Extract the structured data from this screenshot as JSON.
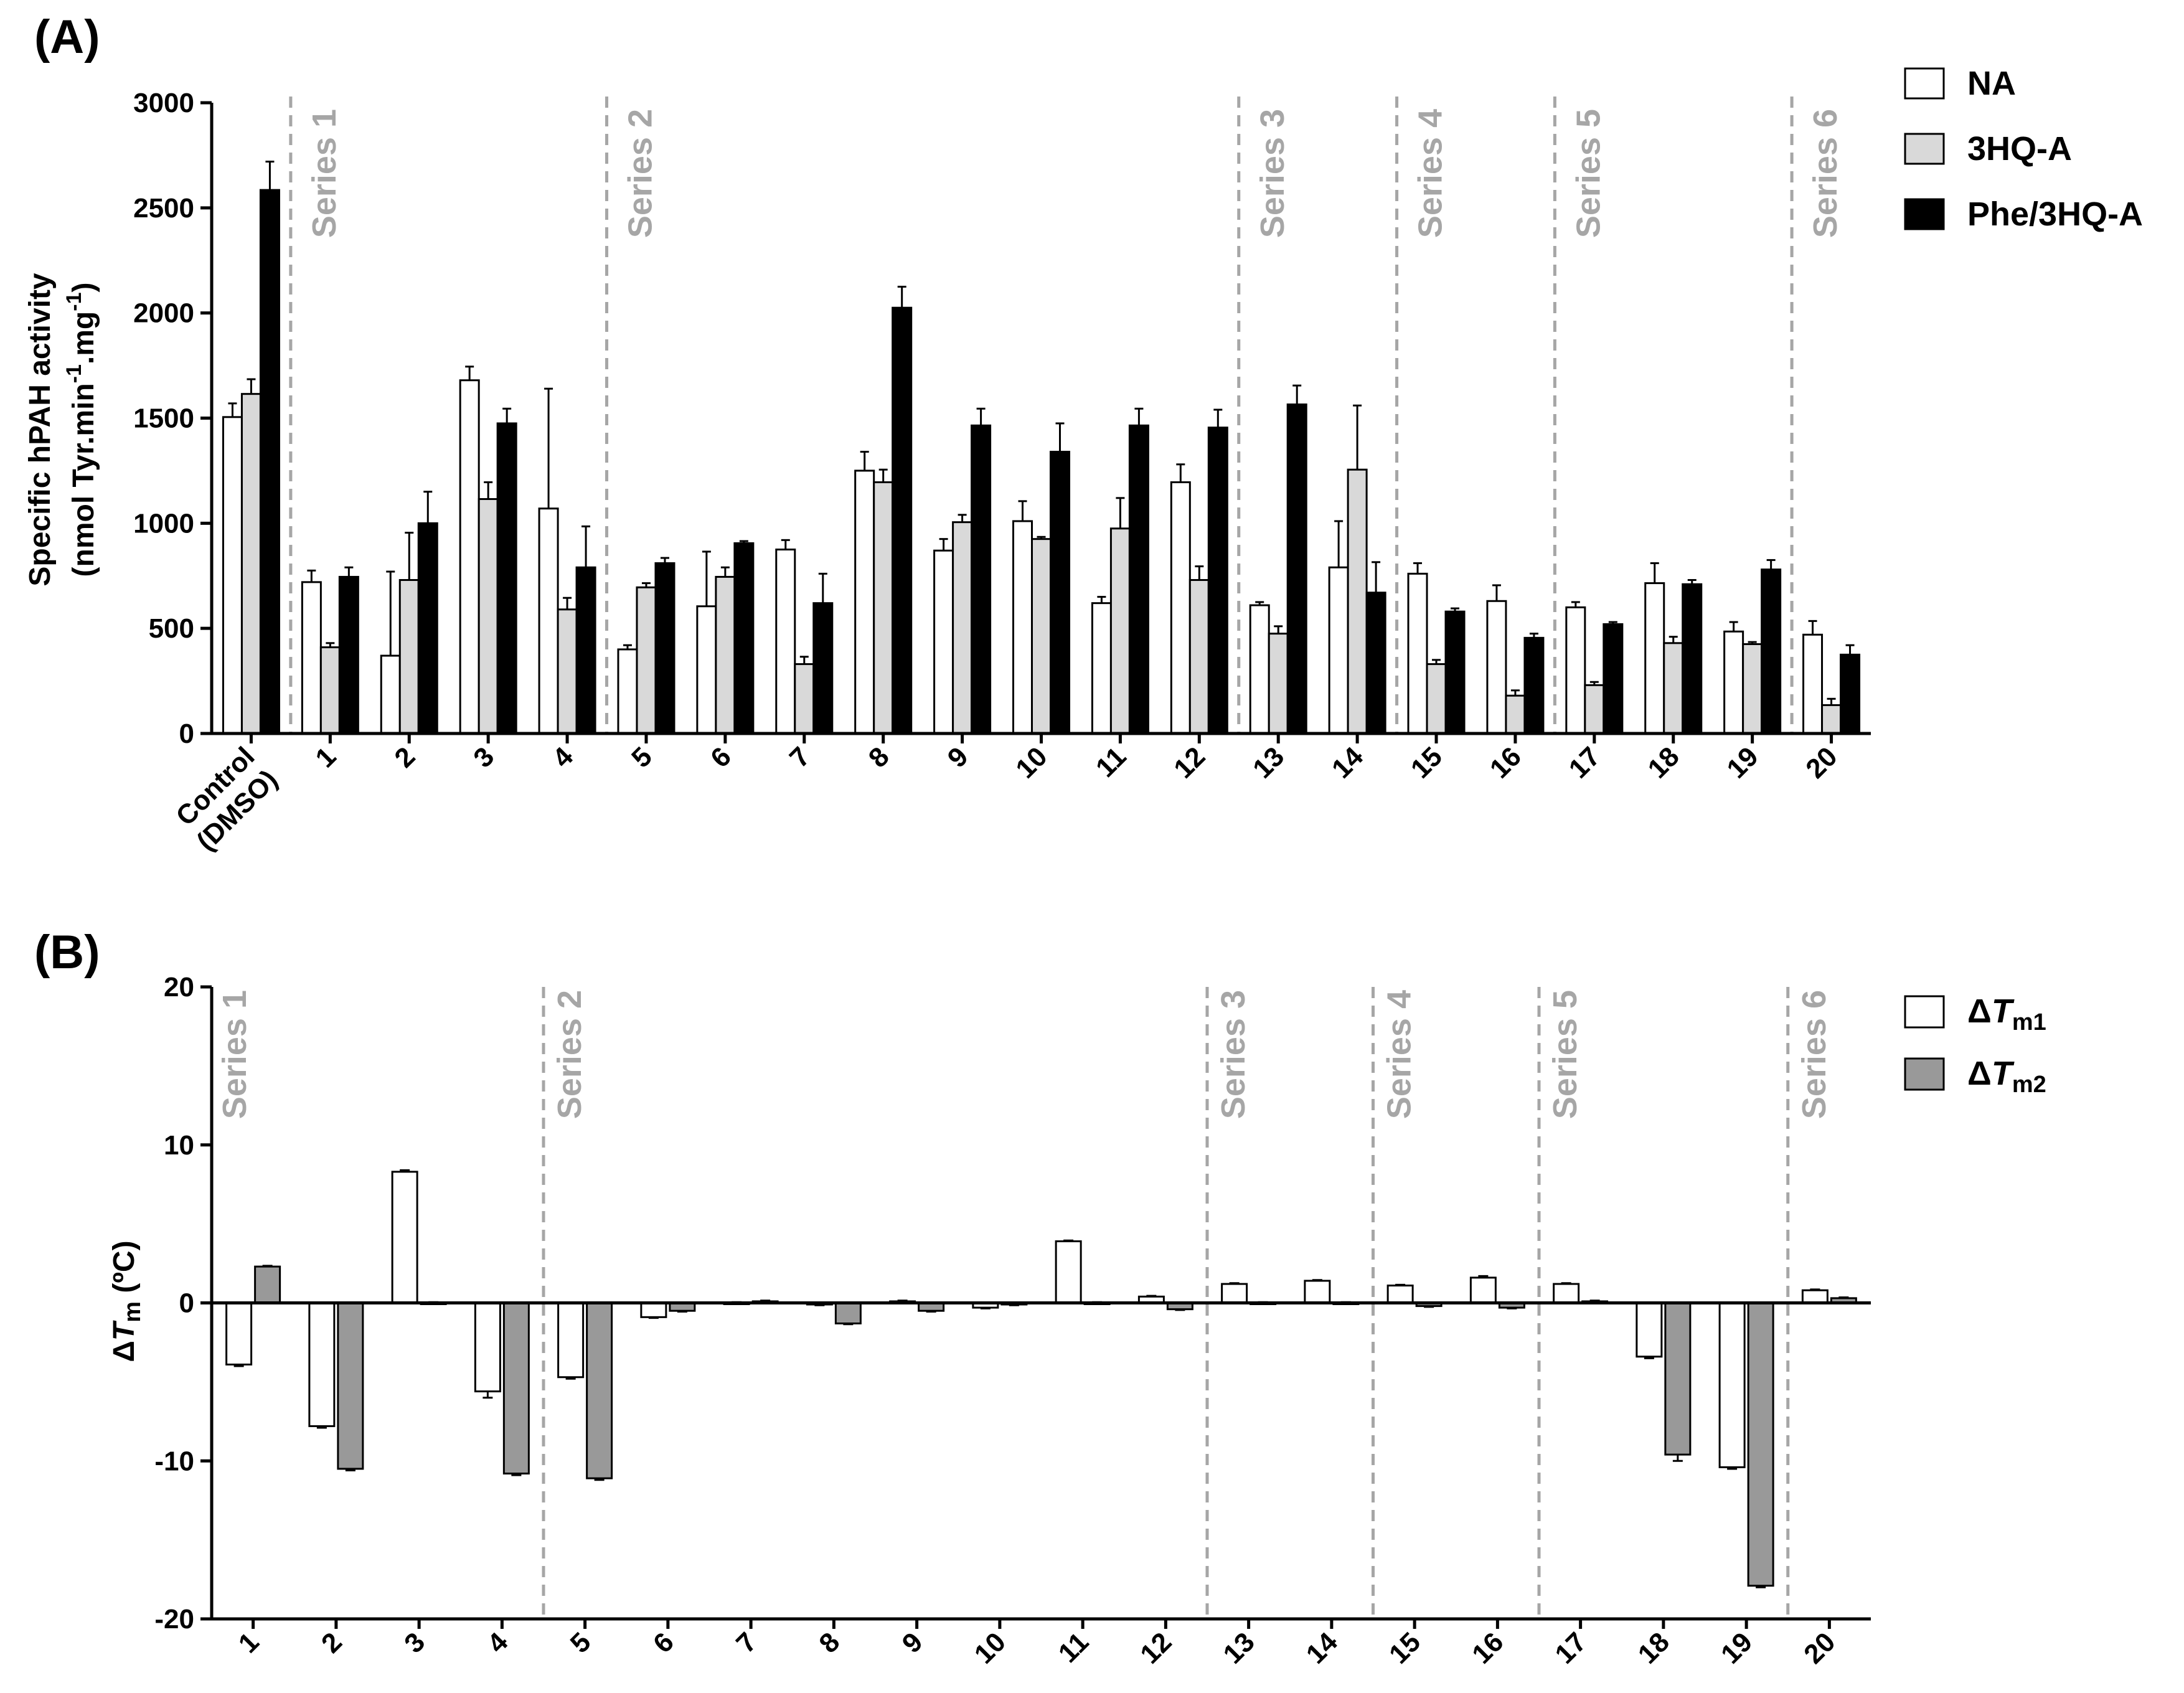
{
  "colors": {
    "NA": "#ffffff",
    "3HQ-A": "#d9d9d9",
    "Phe/3HQ-A": "#000000",
    "dTm1": "#ffffff",
    "dTm2": "#999999",
    "divider": "#a6a6a6"
  },
  "chart_data": [
    {
      "panel": "(A)",
      "type": "bar",
      "ylabel_line1": "Specific hPAH activity",
      "ylabel_line2": "(nmol Tyr.min",
      "ylabel_sup1": "-1",
      "ylabel_mid": ".mg",
      "ylabel_sup2": "-1",
      "ylabel_end": ")",
      "ylim": [
        0,
        3000
      ],
      "yticks": [
        0,
        500,
        1000,
        1500,
        2000,
        2500,
        3000
      ],
      "categories": [
        "Control (DMSO)",
        "1",
        "2",
        "3",
        "4",
        "5",
        "6",
        "7",
        "8",
        "9",
        "10",
        "11",
        "12",
        "13",
        "14",
        "15",
        "16",
        "17",
        "18",
        "19",
        "20"
      ],
      "control_label_line1": "Control",
      "control_label_line2": "(DMSO)",
      "series": [
        {
          "name": "NA",
          "values": [
            1505,
            720,
            370,
            1680,
            1070,
            400,
            605,
            875,
            1250,
            870,
            1010,
            620,
            1195,
            610,
            790,
            760,
            630,
            600,
            715,
            485,
            470
          ],
          "errors": [
            65,
            55,
            400,
            65,
            570,
            20,
            260,
            45,
            90,
            55,
            95,
            30,
            85,
            15,
            220,
            50,
            75,
            25,
            95,
            45,
            65
          ]
        },
        {
          "name": "3HQ-A",
          "values": [
            1615,
            410,
            730,
            1115,
            590,
            695,
            745,
            330,
            1195,
            1005,
            925,
            975,
            730,
            475,
            1255,
            330,
            180,
            230,
            430,
            425,
            135
          ],
          "errors": [
            70,
            20,
            225,
            80,
            55,
            20,
            45,
            35,
            60,
            35,
            10,
            145,
            65,
            35,
            305,
            20,
            25,
            15,
            30,
            10,
            30
          ]
        },
        {
          "name": "Phe/3HQ-A",
          "values": [
            2585,
            745,
            1000,
            1475,
            790,
            810,
            905,
            620,
            2025,
            1465,
            1340,
            1465,
            1455,
            1565,
            670,
            580,
            455,
            520,
            710,
            780,
            375
          ],
          "errors": [
            135,
            45,
            150,
            70,
            195,
            25,
            10,
            140,
            100,
            80,
            135,
            80,
            85,
            90,
            145,
            15,
            20,
            10,
            20,
            45,
            45
          ]
        }
      ],
      "series_groups": [
        {
          "label": "Series 1",
          "after_index": 0
        },
        {
          "label": "Series 2",
          "after_index": 4
        },
        {
          "label": "Series 3",
          "after_index": 12
        },
        {
          "label": "Series 4",
          "after_index": 14
        },
        {
          "label": "Series 5",
          "after_index": 16
        },
        {
          "label": "Series 6",
          "after_index": 19
        }
      ],
      "legend": [
        "NA",
        "3HQ-A",
        "Phe/3HQ-A"
      ],
      "legend_position": "top-right"
    },
    {
      "panel": "(B)",
      "type": "bar",
      "ylabel_delta": "Δ",
      "ylabel_T": "T",
      "ylabel_sub": "m",
      "ylabel_unit": " (ºC)",
      "ylim": [
        -20,
        20
      ],
      "yticks": [
        -20,
        -10,
        0,
        10,
        20
      ],
      "categories": [
        "1",
        "2",
        "3",
        "4",
        "5",
        "6",
        "7",
        "8",
        "9",
        "10",
        "11",
        "12",
        "13",
        "14",
        "15",
        "16",
        "17",
        "18",
        "19",
        "20"
      ],
      "series": [
        {
          "name": "ΔTm1",
          "legend_delta": "Δ",
          "legend_T": "T",
          "legend_sub": "m1",
          "values": [
            -3.9,
            -7.8,
            8.3,
            -5.6,
            -4.7,
            -0.9,
            0.0,
            -0.1,
            0.1,
            -0.3,
            3.9,
            0.4,
            1.2,
            1.4,
            1.1,
            1.6,
            1.2,
            -3.4,
            -10.4,
            0.8
          ],
          "errors": [
            0.1,
            0.1,
            0.1,
            0.4,
            0.1,
            0.05,
            0.05,
            0.05,
            0.05,
            0.05,
            0.05,
            0.05,
            0.05,
            0.05,
            0.05,
            0.1,
            0.05,
            0.1,
            0.1,
            0.05
          ]
        },
        {
          "name": "ΔTm2",
          "legend_delta": "Δ",
          "legend_T": "T",
          "legend_sub": "m2",
          "values": [
            2.3,
            -10.5,
            0.0,
            -10.8,
            -11.1,
            -0.5,
            0.1,
            -1.3,
            -0.5,
            -0.1,
            0.0,
            -0.4,
            0.0,
            0.0,
            -0.2,
            -0.3,
            0.1,
            -9.6,
            -17.9,
            0.3
          ],
          "errors": [
            0.05,
            0.1,
            0.05,
            0.1,
            0.1,
            0.05,
            0.05,
            0.05,
            0.05,
            0.05,
            0.05,
            0.05,
            0.05,
            0.05,
            0.05,
            0.05,
            0.05,
            0.4,
            0.1,
            0.05
          ]
        }
      ],
      "series_groups": [
        {
          "label": "Series 1",
          "after_index": -1
        },
        {
          "label": "Series 2",
          "after_index": 3
        },
        {
          "label": "Series 3",
          "after_index": 11
        },
        {
          "label": "Series 4",
          "after_index": 13
        },
        {
          "label": "Series 5",
          "after_index": 15
        },
        {
          "label": "Series 6",
          "after_index": 18
        }
      ],
      "legend": [
        "ΔTm1",
        "ΔTm2"
      ],
      "legend_position": "top-right"
    }
  ]
}
